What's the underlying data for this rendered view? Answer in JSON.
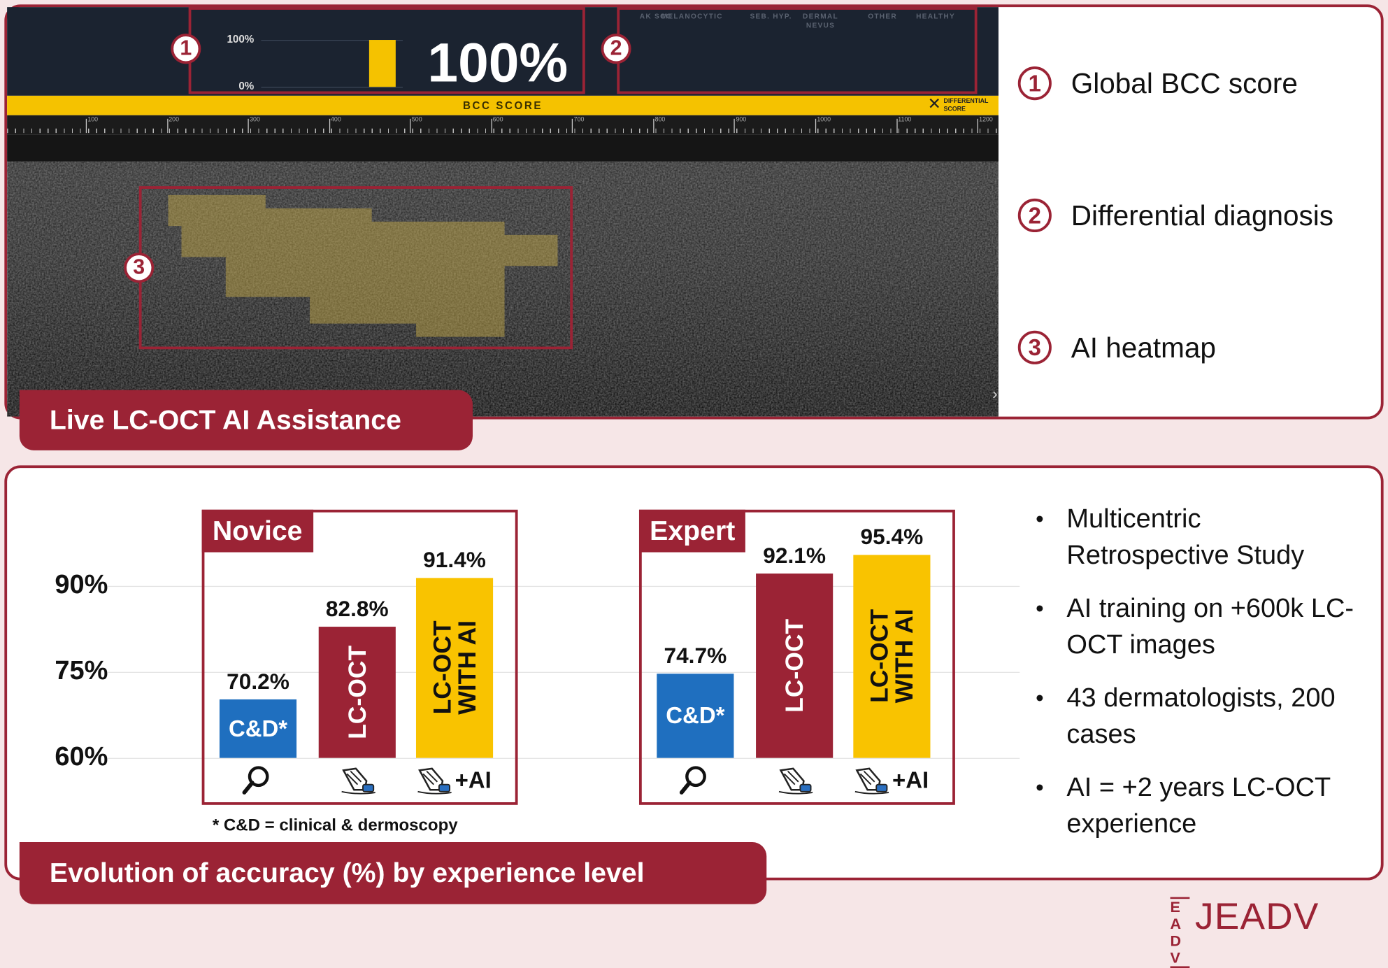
{
  "oct_panel": {
    "title": "Live LC-OCT AI Assistance",
    "markers": [
      "1",
      "2",
      "3"
    ],
    "gauge": {
      "ticks": [
        {
          "value": 0,
          "label": "0%"
        },
        {
          "value": 100,
          "label": "100%"
        }
      ],
      "value": 100,
      "value_label": "100%"
    },
    "class_labels": [
      "AK SCC",
      "MELANOCYTIC",
      "SEB. HYP.",
      "DERMAL NEVUS",
      "OTHER",
      "HEALTHY"
    ],
    "score_bar_label": "BCC SCORE",
    "toggle_label": "DIFFERENTIAL SCORE",
    "ruler_ticks": [
      100,
      200,
      300,
      400,
      500,
      600,
      700,
      800,
      900,
      1000,
      1100,
      1200
    ]
  },
  "legend": [
    "Global BCC score",
    "Differential diagnosis",
    "AI heatmap"
  ],
  "chart_data": {
    "type": "bar",
    "title": "Evolution of accuracy (%) by experience level",
    "ylim": [
      60,
      100
    ],
    "yticks": [
      {
        "value": 60,
        "label": "60%"
      },
      {
        "value": 75,
        "label": "75%"
      },
      {
        "value": 90,
        "label": "90%"
      }
    ],
    "grid": true,
    "categories": [
      "C&D*",
      "LC-OCT",
      "LC-OCT WITH AI"
    ],
    "colors": [
      "#1f6fbf",
      "#9b2335",
      "#f9c300"
    ],
    "ai_icon_text": "+AI",
    "panels": [
      {
        "name": "Novice",
        "values": [
          70.2,
          82.8,
          91.4
        ],
        "value_labels": [
          "70.2%",
          "82.8%",
          "91.4%"
        ]
      },
      {
        "name": "Expert",
        "values": [
          74.7,
          92.1,
          95.4
        ],
        "value_labels": [
          "74.7%",
          "92.1%",
          "95.4%"
        ]
      }
    ],
    "footnote": "* C&D = clinical & dermoscopy"
  },
  "bullets": [
    "Multicentric Retrospective Study",
    "AI training on +600k LC-OCT images",
    "43 dermatologists, 200 cases",
    "AI = +2 years LC-OCT experience"
  ],
  "logo": {
    "mark": "EADV",
    "text": "JEADV"
  }
}
